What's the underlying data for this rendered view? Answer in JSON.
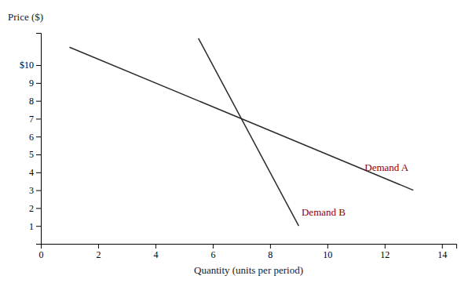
{
  "chart_data": {
    "type": "line",
    "x_label": "Quantity (units per period)",
    "y_label": "Price ($)",
    "xlim": [
      0,
      14.5
    ],
    "ylim": [
      0,
      11.8
    ],
    "xticks": [
      0,
      2,
      4,
      6,
      8,
      10,
      12,
      14
    ],
    "yticks": [
      1,
      2,
      3,
      4,
      5,
      6,
      7,
      8,
      9,
      {
        "value": 10,
        "label": "$10"
      }
    ],
    "grid": false,
    "series": [
      {
        "x": [
          1,
          13
        ],
        "values": [
          11,
          3
        ],
        "color": "#2b2b2b"
      },
      {
        "x": [
          5.5,
          9.0
        ],
        "values": [
          11.5,
          1
        ],
        "color": "#2b2b2b"
      }
    ],
    "annotations": [
      {
        "text": "Demand A",
        "x": 11.3,
        "y": 4.1,
        "color": "#8B0000"
      },
      {
        "text": "Demand B",
        "x": 9.1,
        "y": 1.6,
        "color": "#8B0000"
      }
    ]
  }
}
